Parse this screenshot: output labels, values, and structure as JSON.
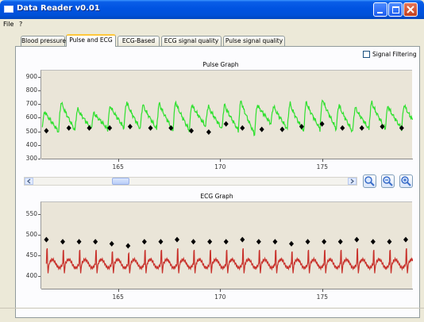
{
  "window": {
    "title": "Data Reader v0.01"
  },
  "menu": [
    "File",
    "?"
  ],
  "tabs": [
    "Blood pressure",
    "Pulse and ECG",
    "ECG-Based",
    "ECG signal quality",
    "Pulse signal quality"
  ],
  "active_tab_index": 1,
  "filter": {
    "label": "Signal Filtering",
    "checked": false
  },
  "colors": {
    "pulse_line": "#2fe02f",
    "ecg_line": "#c8302a",
    "marker": "#000000",
    "plot_bg": "#eae5d8"
  },
  "icons": {
    "scroll_left": "chevron-left-icon",
    "scroll_right": "chevron-right-icon",
    "zoom_fit": "magnifier-icon",
    "zoom_out": "magnifier-minus-icon",
    "zoom_in": "magnifier-plus-icon"
  },
  "chart_data": [
    {
      "type": "line",
      "title": "Pulse Graph",
      "xlabel": "",
      "ylabel": "",
      "xlim": [
        161.2,
        179.4
      ],
      "ylim": [
        300,
        950
      ],
      "x_ticks": [
        165,
        170,
        175
      ],
      "y_ticks": [
        300,
        400,
        500,
        600,
        700,
        800,
        900
      ],
      "y_tick_labels": [
        "300",
        "400",
        "500",
        "600",
        "700",
        "800",
        "900"
      ],
      "grid": false,
      "series": [
        {
          "kind": "periodic-line",
          "start": 161.25,
          "period": 0.8,
          "peak_values": [
            650,
            720,
            670,
            640,
            690,
            720,
            700,
            710,
            720,
            700,
            690,
            700,
            730,
            700,
            690,
            710,
            720,
            740,
            700,
            680,
            720,
            690,
            700,
            710,
            690,
            720,
            700,
            710
          ],
          "trough_values": [
            540,
            500,
            510,
            520,
            520,
            530,
            520,
            520,
            510,
            510,
            540,
            520,
            510,
            480,
            560,
            520,
            500,
            520,
            520,
            500,
            520,
            520,
            520,
            520,
            530,
            520,
            520,
            520
          ],
          "end": 179.4
        },
        {
          "kind": "markers",
          "x": [
            161.45,
            162.55,
            163.55,
            164.55,
            165.55,
            166.55,
            167.55,
            168.55,
            169.4,
            170.25,
            171.05,
            172.0,
            173.0,
            173.95,
            174.95,
            175.95,
            176.9,
            177.9,
            178.85
          ],
          "y": [
            510,
            530,
            530,
            530,
            540,
            530,
            530,
            510,
            500,
            560,
            530,
            520,
            520,
            540,
            560,
            530,
            530,
            540,
            530
          ]
        }
      ]
    },
    {
      "type": "line",
      "title": "ECG Graph",
      "xlabel": "",
      "ylabel": "",
      "xlim": [
        161.2,
        179.4
      ],
      "ylim": [
        370,
        580
      ],
      "x_ticks": [
        165,
        170,
        175
      ],
      "y_ticks": [
        400,
        450,
        500,
        550
      ],
      "y_tick_labels": [
        "400",
        "450",
        "500",
        "550"
      ],
      "grid": false,
      "series": [
        {
          "kind": "periodic-line",
          "start": 161.45,
          "period": 0.8,
          "spike_values": [
            485,
            480,
            480,
            480,
            475,
            470,
            480,
            480,
            485,
            480,
            480,
            480,
            485,
            480,
            480,
            475,
            480,
            480,
            480,
            485,
            480,
            480,
            485
          ],
          "end": 179.4
        },
        {
          "kind": "markers",
          "x": [
            161.45,
            162.25,
            163.05,
            163.85,
            164.65,
            165.45,
            166.25,
            167.05,
            167.85,
            168.65,
            169.45,
            170.25,
            171.05,
            171.85,
            172.65,
            173.45,
            174.25,
            175.05,
            175.85,
            176.65,
            177.45,
            178.25,
            179.05
          ],
          "y": [
            490,
            485,
            485,
            485,
            480,
            475,
            485,
            485,
            490,
            485,
            485,
            485,
            490,
            485,
            485,
            480,
            485,
            485,
            485,
            490,
            485,
            485,
            490
          ]
        }
      ]
    }
  ]
}
